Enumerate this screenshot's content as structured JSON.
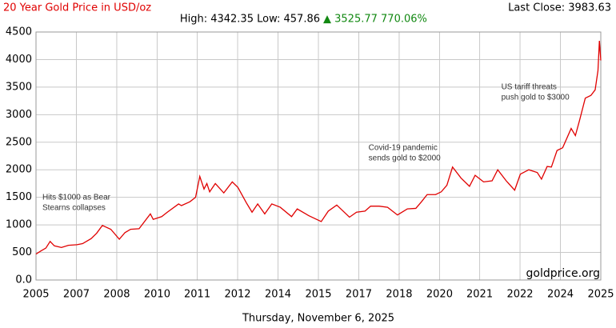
{
  "chart_data": {
    "type": "line",
    "title": "20 Year Gold Price in USD/oz",
    "stats": "High: 4342.35 Low: 457.86",
    "change": "▲ 3525.77 770.06%",
    "last_close": "Last Close: 3983.63",
    "watermark": "goldprice.org",
    "date": "Thursday, November 6, 2025",
    "annotations": [
      {
        "lines": [
          "Hits $1000 as Bear",
          "Stearns collapses"
        ],
        "x": 2008.2,
        "y": 1500
      },
      {
        "lines": [
          "Covid-19 pandemic",
          "sends gold to $2000"
        ],
        "x": 2020.6,
        "y": 2400
      },
      {
        "lines": [
          "US tariff threats",
          "push gold to $3000"
        ],
        "x": 2025.3,
        "y": 3500
      }
    ],
    "color": "#e00000",
    "grid": true,
    "x": [
      2005.85,
      2006.0,
      2006.2,
      2006.35,
      2006.5,
      2006.75,
      2007.0,
      2007.3,
      2007.5,
      2007.8,
      2008.0,
      2008.2,
      2008.5,
      2008.8,
      2009.0,
      2009.2,
      2009.5,
      2009.9,
      2010.0,
      2010.3,
      2010.5,
      2010.9,
      2011.0,
      2011.3,
      2011.5,
      2011.65,
      2011.8,
      2011.9,
      2012.0,
      2012.2,
      2012.5,
      2012.8,
      2013.0,
      2013.3,
      2013.5,
      2013.7,
      2013.95,
      2014.2,
      2014.5,
      2014.9,
      2015.1,
      2015.5,
      2015.95,
      2016.2,
      2016.5,
      2016.95,
      2017.2,
      2017.5,
      2017.7,
      2018.0,
      2018.3,
      2018.65,
      2019.0,
      2019.3,
      2019.5,
      2019.7,
      2020.0,
      2020.2,
      2020.4,
      2020.6,
      2020.9,
      2021.2,
      2021.4,
      2021.7,
      2022.0,
      2022.2,
      2022.5,
      2022.8,
      2023.0,
      2023.3,
      2023.6,
      2023.75,
      2023.95,
      2024.1,
      2024.3,
      2024.5,
      2024.8,
      2024.95,
      2025.1,
      2025.3,
      2025.5,
      2025.65,
      2025.75,
      2025.8,
      2025.85
    ],
    "values": [
      470,
      520,
      580,
      700,
      620,
      590,
      630,
      640,
      660,
      750,
      850,
      990,
      920,
      740,
      860,
      920,
      930,
      1200,
      1100,
      1150,
      1230,
      1380,
      1350,
      1420,
      1500,
      1880,
      1650,
      1750,
      1600,
      1750,
      1580,
      1780,
      1680,
      1400,
      1230,
      1380,
      1200,
      1380,
      1320,
      1150,
      1290,
      1170,
      1060,
      1250,
      1360,
      1140,
      1230,
      1250,
      1340,
      1340,
      1320,
      1180,
      1290,
      1300,
      1420,
      1550,
      1550,
      1600,
      1720,
      2050,
      1850,
      1700,
      1900,
      1780,
      1800,
      2000,
      1800,
      1630,
      1920,
      2000,
      1950,
      1830,
      2060,
      2050,
      2350,
      2400,
      2750,
      2620,
      2900,
      3300,
      3350,
      3450,
      3800,
      4340,
      3984
    ],
    "xlim": [
      2005.85,
      2025.85
    ],
    "ylim": [
      0,
      4500
    ],
    "xticks": [
      {
        "value": 2005.85,
        "label": "2005"
      },
      {
        "value": 2007.28,
        "label": "2007"
      },
      {
        "value": 2008.71,
        "label": "2008"
      },
      {
        "value": 2010.14,
        "label": "2010"
      },
      {
        "value": 2011.56,
        "label": "2011"
      },
      {
        "value": 2012.99,
        "label": "2012"
      },
      {
        "value": 2014.42,
        "label": "2014"
      },
      {
        "value": 2015.85,
        "label": "2015"
      },
      {
        "value": 2017.28,
        "label": "2017"
      },
      {
        "value": 2018.71,
        "label": "2018"
      },
      {
        "value": 2020.14,
        "label": "2020"
      },
      {
        "value": 2021.56,
        "label": "2021"
      },
      {
        "value": 2022.99,
        "label": "2022"
      },
      {
        "value": 2024.42,
        "label": "2024"
      },
      {
        "value": 2025.85,
        "label": "2025"
      }
    ],
    "yticks": [
      {
        "value": 0,
        "label": "0.0"
      },
      500,
      1000,
      1500,
      2000,
      2500,
      3000,
      3500,
      4000,
      4500
    ]
  }
}
